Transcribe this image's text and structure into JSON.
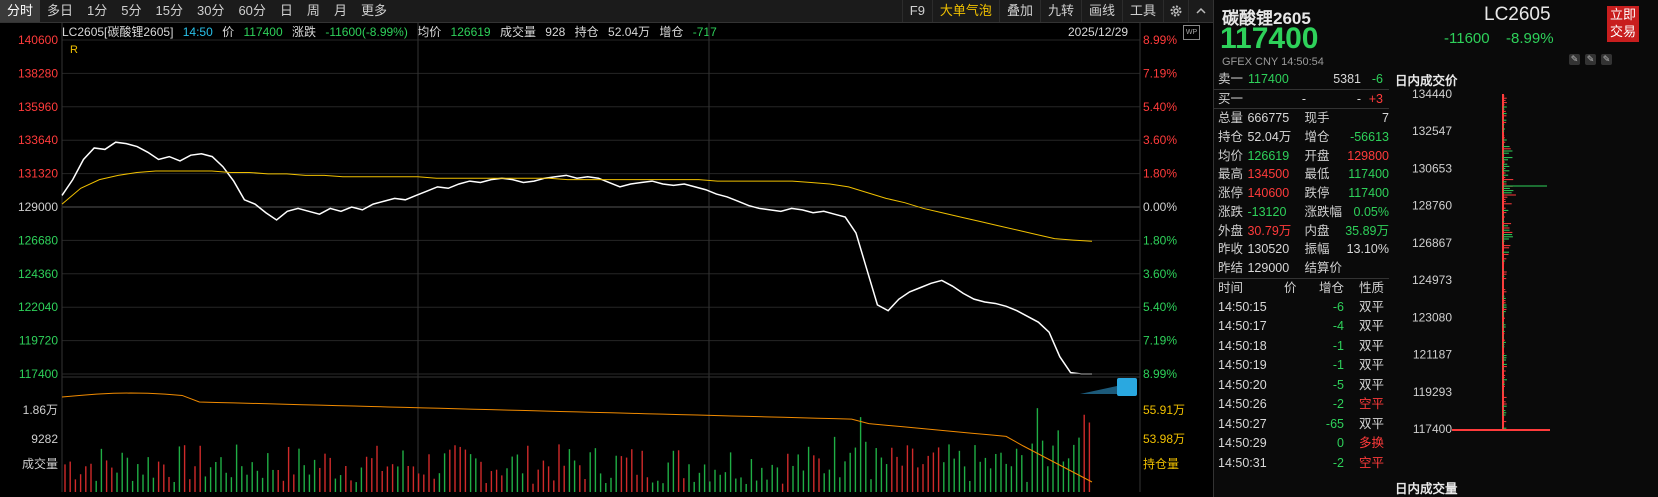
{
  "toolbar": {
    "left_items": [
      "分时",
      "多日",
      "1分",
      "5分",
      "15分",
      "30分",
      "60分",
      "日",
      "周",
      "月",
      "更多"
    ],
    "right_items": [
      "F9",
      "大单气泡",
      "叠加",
      "九转",
      "画线",
      "工具"
    ],
    "active": "分时"
  },
  "infobar": {
    "code": "LC2605[碳酸锂2605]",
    "time": "14:50",
    "price_label": "价",
    "price": "117400",
    "chg_label": "涨跌",
    "chg": "-11600(-8.99%)",
    "avg_label": "均价",
    "avg": "126619",
    "vol_label": "成交量",
    "vol": "928",
    "oi_label": "持仓",
    "oi": "52.04万",
    "oichg_label": "增仓",
    "oichg": "-717",
    "date": "2025/12/29",
    "r_mark": "R"
  },
  "chart_data": {
    "type": "line",
    "title": "LC2605[碳酸锂2605]",
    "price_axis_left": [
      "140600",
      "138280",
      "135960",
      "133640",
      "131320",
      "129000",
      "126680",
      "124360",
      "122040",
      "119720",
      "117400"
    ],
    "pct_axis_right": [
      "8.99%",
      "7.19%",
      "5.40%",
      "3.60%",
      "1.80%",
      "0.00%",
      "1.80%",
      "3.60%",
      "5.40%",
      "7.19%",
      "8.99%"
    ],
    "ylim": [
      117400,
      140600
    ],
    "prev_settle": 129000,
    "price_series": [
      129800,
      130900,
      132300,
      133100,
      133000,
      133500,
      133400,
      133200,
      132800,
      132300,
      132500,
      132200,
      132600,
      132700,
      132500,
      131800,
      130800,
      129500,
      129200,
      128600,
      128100,
      128700,
      128900,
      128700,
      128500,
      128900,
      128700,
      129000,
      128800,
      129200,
      129400,
      129600,
      129500,
      129800,
      130100,
      130400,
      130300,
      130600,
      130800,
      130700,
      130900,
      131000,
      130900,
      130700,
      130800,
      131000,
      131100,
      131200,
      131000,
      131100,
      131000,
      130700,
      130400,
      130600,
      130700,
      130800,
      130600,
      130500,
      130600,
      130400,
      130200,
      129900,
      129700,
      129400,
      129100,
      128900,
      128800,
      128700,
      128900,
      128800,
      128600,
      128700,
      128500,
      128300,
      127200,
      124700,
      122200,
      121800,
      122600,
      123100,
      123400,
      123700,
      123900,
      123500,
      123000,
      122600,
      122400,
      122300,
      122100,
      121800,
      121400,
      121000,
      120300,
      118600,
      117500,
      117400,
      117400
    ],
    "avg_series": [
      129200,
      130300,
      130900,
      131200,
      131400,
      131500,
      131500,
      131500,
      131500,
      131400,
      131400,
      131300,
      131300,
      131200,
      131200,
      131100,
      131100,
      131100,
      131100,
      131100,
      131000,
      131000,
      131000,
      131000,
      131000,
      131000,
      131000,
      130900,
      130900,
      130900,
      130900,
      130900,
      130900,
      130900,
      130900,
      130800,
      130800,
      130800,
      130800,
      130800,
      130700,
      130600,
      130400,
      130000,
      129600,
      129300,
      128900,
      128600,
      128300,
      128000,
      127700,
      127400,
      127100,
      126800,
      126700,
      126619
    ],
    "volume_axis": [
      "1.86万",
      "9282",
      "成交量"
    ],
    "oi_axis": [
      "55.91万",
      "53.98万",
      "持仓量"
    ]
  },
  "quote": {
    "name": "碳酸锂2605",
    "code": "LC2605",
    "price": "117400",
    "chg": "-11600",
    "pct": "-8.99%",
    "trade_btn": "立即交易",
    "sub": "GFEX  CNY  14:50:54",
    "ask": {
      "label": "卖一",
      "price": "117400",
      "vol": "5381",
      "chg": "-6"
    },
    "bid": {
      "label": "买一",
      "price": "-",
      "vol": "-",
      "chg": "+3"
    },
    "rows": [
      {
        "k1": "总量",
        "v1": "666775",
        "k2": "现手",
        "v2": "7"
      },
      {
        "k1": "持仓",
        "v1": "52.04万",
        "k2": "增仓",
        "v2": "-56613"
      },
      {
        "k1": "均价",
        "v1": "126619",
        "k2": "开盘",
        "v2": "129800"
      },
      {
        "k1": "最高",
        "v1": "134500",
        "k2": "最低",
        "v2": "117400"
      },
      {
        "k1": "涨停",
        "v1": "140600",
        "k2": "跌停",
        "v2": "117400"
      },
      {
        "k1": "涨跌",
        "v1": "-13120",
        "k2": "涨跌幅",
        "v2": "0.05%"
      },
      {
        "k1": "外盘",
        "v1": "30.79万",
        "k2": "内盘",
        "v2": "35.89万"
      },
      {
        "k1": "昨收",
        "v1": "130520",
        "k2": "振幅",
        "v2": "13.10%"
      },
      {
        "k1": "昨结",
        "v1": "129000",
        "k2": "结算价",
        "v2": ""
      }
    ],
    "tick_headers": [
      "时间",
      "价",
      "增仓",
      "性质"
    ],
    "ticks": [
      {
        "t": "14:50:15",
        "chg": "-6",
        "nature": "双平"
      },
      {
        "t": "14:50:17",
        "chg": "-4",
        "nature": "双平"
      },
      {
        "t": "14:50:18",
        "chg": "-1",
        "nature": "双平"
      },
      {
        "t": "14:50:19",
        "chg": "-1",
        "nature": "双平"
      },
      {
        "t": "14:50:20",
        "chg": "-5",
        "nature": "双平"
      },
      {
        "t": "14:50:26",
        "chg": "-2",
        "nature": "空平"
      },
      {
        "t": "14:50:27",
        "chg": "-65",
        "nature": "双平"
      },
      {
        "t": "14:50:29",
        "chg": "0",
        "nature": "多换"
      },
      {
        "t": "14:50:31",
        "chg": "-2",
        "nature": "空平"
      }
    ],
    "vp_title": "日内成交价",
    "vp_bottom": "日内成交量",
    "vp_prices": [
      "134440",
      "132547",
      "130653",
      "128760",
      "126867",
      "124973",
      "123080",
      "121187",
      "119293",
      "117400"
    ]
  },
  "colors": {
    "up": "#ff3b3b",
    "down": "#2ed15a",
    "avg": "#f0c000",
    "price": "#ffffff",
    "grid": "#2a2a2a"
  }
}
